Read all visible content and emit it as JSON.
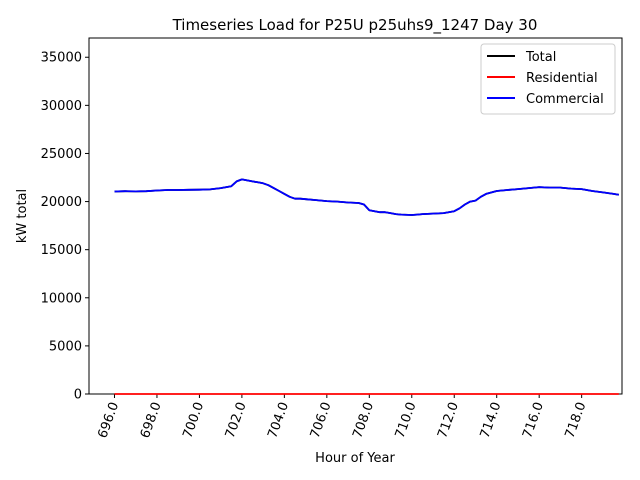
{
  "chart_data": {
    "type": "line",
    "title": "Timeseries Load for P25U p25uhs9_1247  Day 30",
    "xlabel": "Hour of Year",
    "ylabel": "kW total",
    "xlim": [
      694.8,
      719.9
    ],
    "ylim": [
      0,
      37000
    ],
    "x_ticks": [
      696,
      698,
      700,
      702,
      704,
      706,
      708,
      710,
      712,
      714,
      716,
      718
    ],
    "x_tick_labels": [
      "696.0",
      "698.0",
      "700.0",
      "702.0",
      "704.0",
      "706.0",
      "708.0",
      "710.0",
      "712.0",
      "714.0",
      "716.0",
      "718.0"
    ],
    "y_ticks": [
      0,
      5000,
      10000,
      15000,
      20000,
      25000,
      30000,
      35000
    ],
    "y_tick_labels": [
      "0",
      "5000",
      "10000",
      "15000",
      "20000",
      "25000",
      "30000",
      "35000"
    ],
    "legend_position": "top-right",
    "series": [
      {
        "name": "Total",
        "color": "#000000",
        "x": [
          696.0,
          696.5,
          697.0,
          697.5,
          698.0,
          698.5,
          699.0,
          699.5,
          700.0,
          700.5,
          701.0,
          701.5,
          701.75,
          702.0,
          702.25,
          702.5,
          702.75,
          703.0,
          703.25,
          703.5,
          703.75,
          704.0,
          704.25,
          704.5,
          704.75,
          705.0,
          705.5,
          706.0,
          706.5,
          707.0,
          707.5,
          707.75,
          708.0,
          708.25,
          708.5,
          708.75,
          709.0,
          709.25,
          709.5,
          710.0,
          710.25,
          710.5,
          711.0,
          711.5,
          712.0,
          712.25,
          712.5,
          712.75,
          713.0,
          713.25,
          713.5,
          714.0,
          714.5,
          715.0,
          715.5,
          716.0,
          716.5,
          717.0,
          717.5,
          718.0,
          718.5,
          719.0,
          719.5,
          719.75
        ],
        "values": [
          21050,
          21080,
          21060,
          21080,
          21150,
          21200,
          21200,
          21220,
          21230,
          21260,
          21400,
          21600,
          22100,
          22300,
          22200,
          22100,
          22000,
          21900,
          21700,
          21400,
          21100,
          20800,
          20500,
          20300,
          20300,
          20250,
          20150,
          20050,
          20000,
          19900,
          19850,
          19700,
          19100,
          19000,
          18900,
          18900,
          18800,
          18700,
          18650,
          18600,
          18650,
          18700,
          18750,
          18800,
          19000,
          19300,
          19700,
          20000,
          20100,
          20500,
          20800,
          21100,
          21200,
          21300,
          21400,
          21500,
          21450,
          21450,
          21350,
          21300,
          21100,
          20950,
          20800,
          20700
        ]
      },
      {
        "name": "Residential",
        "color": "#ff0000",
        "x": [
          696.0,
          719.75
        ],
        "values": [
          0,
          0
        ]
      },
      {
        "name": "Commercial",
        "color": "#0000ff",
        "x": [
          696.0,
          696.5,
          697.0,
          697.5,
          698.0,
          698.5,
          699.0,
          699.5,
          700.0,
          700.5,
          701.0,
          701.5,
          701.75,
          702.0,
          702.25,
          702.5,
          702.75,
          703.0,
          703.25,
          703.5,
          703.75,
          704.0,
          704.25,
          704.5,
          704.75,
          705.0,
          705.5,
          706.0,
          706.5,
          707.0,
          707.5,
          707.75,
          708.0,
          708.25,
          708.5,
          708.75,
          709.0,
          709.25,
          709.5,
          710.0,
          710.25,
          710.5,
          711.0,
          711.5,
          712.0,
          712.25,
          712.5,
          712.75,
          713.0,
          713.25,
          713.5,
          714.0,
          714.5,
          715.0,
          715.5,
          716.0,
          716.5,
          717.0,
          717.5,
          718.0,
          718.5,
          719.0,
          719.5,
          719.75
        ],
        "values": [
          21050,
          21080,
          21060,
          21080,
          21150,
          21200,
          21200,
          21220,
          21230,
          21260,
          21400,
          21600,
          22100,
          22300,
          22200,
          22100,
          22000,
          21900,
          21700,
          21400,
          21100,
          20800,
          20500,
          20300,
          20300,
          20250,
          20150,
          20050,
          20000,
          19900,
          19850,
          19700,
          19100,
          19000,
          18900,
          18900,
          18800,
          18700,
          18650,
          18600,
          18650,
          18700,
          18750,
          18800,
          19000,
          19300,
          19700,
          20000,
          20100,
          20500,
          20800,
          21100,
          21200,
          21300,
          21400,
          21500,
          21450,
          21450,
          21350,
          21300,
          21100,
          20950,
          20800,
          20700
        ]
      }
    ]
  }
}
